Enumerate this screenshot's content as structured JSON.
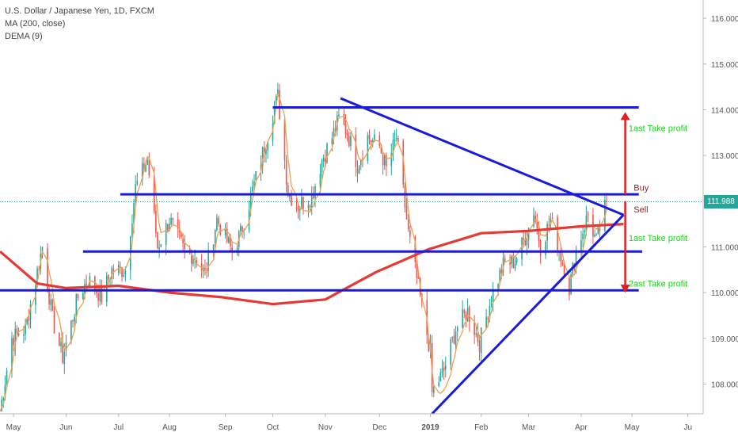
{
  "legend": {
    "symbol": "U.S. Dollar / Japanese Yen, 1D, FXCM",
    "ma": "MA (200, close)",
    "dema": "DEMA (9)"
  },
  "last_price": "111.988",
  "colors": {
    "up_candle": "#26a69a",
    "down_candle": "#ef5350",
    "ma200": "#e53935",
    "dema": "#f0a050",
    "trendline": "#1a1adc",
    "last_price": "#26a69a",
    "axis_text": "#555555"
  },
  "chart_data": {
    "type": "candlestick",
    "y_axis": {
      "ticks": [
        108.0,
        109.0,
        110.0,
        111.0,
        112.0,
        113.0,
        114.0,
        115.0,
        116.0
      ],
      "tick_labels": [
        "108.000",
        "109.000",
        "110.000",
        "111.000",
        "112.000",
        "113.000",
        "114.000",
        "115.000",
        "116.000"
      ],
      "ylim": [
        107.35,
        116.4
      ]
    },
    "x_axis": {
      "tick_labels": [
        "May",
        "Jun",
        "Jul",
        "Aug",
        "Sep",
        "Oct",
        "Nov",
        "Dec",
        "2019",
        "Feb",
        "Mar",
        "Apr",
        "May",
        "Ju"
      ],
      "xlim": [
        "2018-04-23",
        "2019-06-12"
      ]
    },
    "price_anchors": [
      [
        "2018-04-23",
        107.4
      ],
      [
        "2018-04-30",
        109.0
      ],
      [
        "2018-05-08",
        109.2
      ],
      [
        "2018-05-18",
        111.0
      ],
      [
        "2018-05-24",
        109.4
      ],
      [
        "2018-05-30",
        108.6
      ],
      [
        "2018-06-08",
        109.9
      ],
      [
        "2018-06-14",
        110.3
      ],
      [
        "2018-06-22",
        109.9
      ],
      [
        "2018-06-28",
        110.5
      ],
      [
        "2018-07-06",
        110.5
      ],
      [
        "2018-07-12",
        112.3
      ],
      [
        "2018-07-19",
        112.9
      ],
      [
        "2018-07-25",
        111.0
      ],
      [
        "2018-08-01",
        111.6
      ],
      [
        "2018-08-10",
        110.9
      ],
      [
        "2018-08-16",
        110.8
      ],
      [
        "2018-08-22",
        110.4
      ],
      [
        "2018-08-29",
        111.6
      ],
      [
        "2018-09-07",
        110.9
      ],
      [
        "2018-09-12",
        111.3
      ],
      [
        "2018-09-24",
        112.9
      ],
      [
        "2018-10-01",
        113.9
      ],
      [
        "2018-10-04",
        114.3
      ],
      [
        "2018-10-10",
        112.2
      ],
      [
        "2018-10-15",
        111.9
      ],
      [
        "2018-10-24",
        112.1
      ],
      [
        "2018-10-30",
        112.9
      ],
      [
        "2018-11-05",
        113.4
      ],
      [
        "2018-11-09",
        113.8
      ],
      [
        "2018-11-14",
        113.5
      ],
      [
        "2018-11-20",
        112.8
      ],
      [
        "2018-11-26",
        113.4
      ],
      [
        "2018-12-03",
        113.2
      ],
      [
        "2018-12-07",
        112.7
      ],
      [
        "2018-12-13",
        113.4
      ],
      [
        "2018-12-20",
        111.3
      ],
      [
        "2018-12-25",
        110.3
      ],
      [
        "2019-01-02",
        108.7
      ],
      [
        "2019-01-03",
        107.8
      ],
      [
        "2019-01-10",
        108.3
      ],
      [
        "2019-01-17",
        109.2
      ],
      [
        "2019-01-24",
        109.6
      ],
      [
        "2019-01-31",
        108.9
      ],
      [
        "2019-02-07",
        109.9
      ],
      [
        "2019-02-14",
        110.6
      ],
      [
        "2019-02-21",
        110.7
      ],
      [
        "2019-02-28",
        111.3
      ],
      [
        "2019-03-04",
        111.8
      ],
      [
        "2019-03-08",
        111.0
      ],
      [
        "2019-03-14",
        111.6
      ],
      [
        "2019-03-20",
        110.8
      ],
      [
        "2019-03-25",
        110.1
      ],
      [
        "2019-03-29",
        110.9
      ],
      [
        "2019-04-05",
        111.7
      ],
      [
        "2019-04-10",
        111.1
      ],
      [
        "2019-04-16",
        111.988
      ]
    ],
    "series": [
      {
        "name": "MA (200, close)",
        "type": "line",
        "points": [
          [
            "2018-04-23",
            110.9
          ],
          [
            "2018-05-15",
            110.2
          ],
          [
            "2018-06-01",
            110.1
          ],
          [
            "2018-07-02",
            110.15
          ],
          [
            "2018-08-01",
            110.0
          ],
          [
            "2018-09-01",
            109.9
          ],
          [
            "2018-10-01",
            109.75
          ],
          [
            "2018-11-01",
            109.85
          ],
          [
            "2018-12-01",
            110.45
          ],
          [
            "2019-01-01",
            110.95
          ],
          [
            "2019-02-01",
            111.3
          ],
          [
            "2019-03-01",
            111.35
          ],
          [
            "2019-04-01",
            111.45
          ],
          [
            "2019-04-26",
            111.5
          ]
        ]
      },
      {
        "name": "DEMA (9)",
        "type": "line",
        "source": "close"
      }
    ],
    "drawings": [
      {
        "kind": "horizontal",
        "from": "2018-10-01",
        "to": "2019-05-05",
        "value": 114.05
      },
      {
        "kind": "horizontal",
        "from": "2018-07-03",
        "to": "2019-05-05",
        "value": 112.15
      },
      {
        "kind": "horizontal",
        "from": "2018-06-11",
        "to": "2019-05-07",
        "value": 110.9
      },
      {
        "kind": "horizontal",
        "from": "2018-04-23",
        "to": "2019-05-05",
        "value": 110.05
      },
      {
        "kind": "trend",
        "from": [
          "2018-11-10",
          114.25
        ],
        "to": [
          "2019-04-26",
          111.7
        ]
      },
      {
        "kind": "trend",
        "from": [
          "2019-01-03",
          107.35
        ],
        "to": [
          "2019-04-26",
          111.7
        ]
      }
    ],
    "annotations": [
      {
        "text": "1ast Take profit",
        "date": "2019-04-29",
        "value": 113.6,
        "color": "#22d022"
      },
      {
        "text": "Buy",
        "date": "2019-05-02",
        "value": 112.3,
        "color": "#8b2b2b"
      },
      {
        "text": "Sell",
        "date": "2019-05-02",
        "value": 111.82,
        "color": "#8b2b2b"
      },
      {
        "text": "1ast Take profit",
        "date": "2019-04-29",
        "value": 111.2,
        "color": "#22d022"
      },
      {
        "text": "2ast Take profit",
        "date": "2019-04-29",
        "value": 110.2,
        "color": "#22d022"
      }
    ],
    "arrows": [
      {
        "date": "2019-04-27",
        "from": 112.15,
        "to": 113.95,
        "color": "#e02020"
      },
      {
        "date": "2019-04-27",
        "from": 112.0,
        "to": 110.0,
        "color": "#e02020"
      }
    ],
    "last_price_line": 111.988
  }
}
